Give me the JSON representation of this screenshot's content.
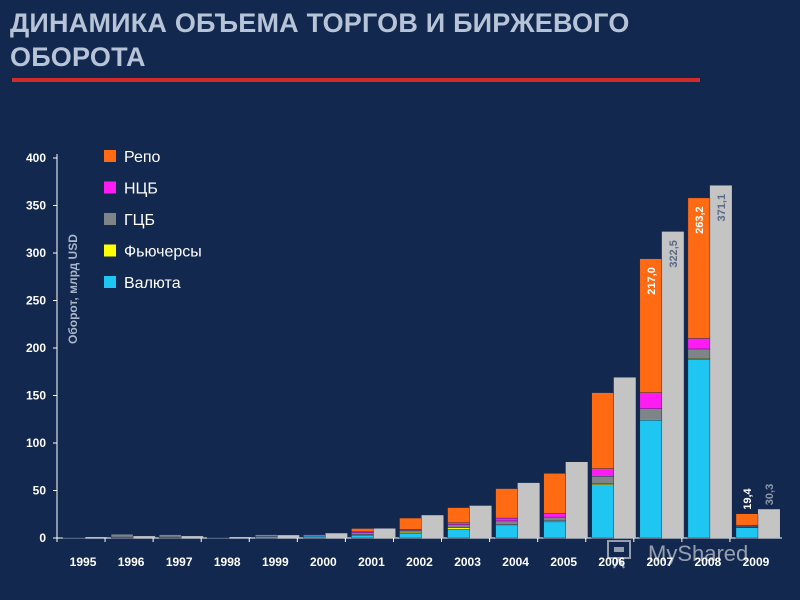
{
  "slide": {
    "title": "ДИНАМИКА ОБЪЕМА ТОРГОВ И БИРЖЕВОГО ОБОРОТА"
  },
  "colors": {
    "background": "#13284f",
    "title_underline": "#d42a2a",
    "repo": "#ff6a13",
    "ncb": "#ff1cf2",
    "gcb": "#7f8488",
    "futures": "#ffff00",
    "currency": "#1fc6f2",
    "turnover": "#c4c4c4"
  },
  "chart_data": {
    "type": "bar",
    "stacked": true,
    "title": "",
    "xlabel": "",
    "ylabel": "Оборот, млрд USD",
    "ylim": [
      0,
      400
    ],
    "yticks": [
      0,
      50,
      100,
      150,
      200,
      250,
      300,
      350,
      400
    ],
    "grid": false,
    "legend_position": "top-left",
    "categories": [
      "1995",
      "1996",
      "1997",
      "1998",
      "1999",
      "2000",
      "2001",
      "2002",
      "2003",
      "2004",
      "2005",
      "2006",
      "2007",
      "2008",
      "2009"
    ],
    "series": [
      {
        "name": "Валюта",
        "color_key": "currency",
        "values": [
          0.5,
          1,
          1,
          0.5,
          1.5,
          2,
          3,
          5,
          9,
          13,
          17,
          56,
          124,
          188,
          11
        ]
      },
      {
        "name": "Фьючерсы",
        "color_key": "futures",
        "values": [
          0,
          0,
          0,
          0,
          0,
          0,
          0.5,
          1,
          2,
          1,
          1,
          1,
          1,
          1,
          0.5
        ]
      },
      {
        "name": "ГЦБ",
        "color_key": "gcb",
        "values": [
          0.5,
          3,
          2.5,
          0.5,
          2,
          1.5,
          2,
          2,
          3,
          4,
          4,
          8,
          11,
          10,
          1
        ]
      },
      {
        "name": "НЦБ",
        "color_key": "ncb",
        "values": [
          0,
          0,
          0,
          0,
          0,
          0.5,
          1,
          1,
          2,
          3,
          4,
          8,
          17,
          11,
          1
        ]
      },
      {
        "name": "Репо",
        "color_key": "repo",
        "values": [
          0,
          0,
          0,
          0,
          0,
          0,
          3.5,
          12,
          16,
          31,
          42,
          80,
          141,
          148,
          12
        ]
      }
    ],
    "turnover_totals": [
      1,
      2,
      2,
      1,
      3,
      5,
      10,
      24,
      34,
      58,
      80,
      169,
      322.5,
      371.1,
      30.3
    ],
    "bar_labels": [
      {
        "year": "2007",
        "stack": "217,0",
        "turnover": "322,5"
      },
      {
        "year": "2008",
        "stack": "263,2",
        "turnover": "371,1"
      },
      {
        "year": "2009",
        "stack": "19,4",
        "turnover": "30,3"
      }
    ],
    "legend": [
      {
        "label": "Репо",
        "color_key": "repo"
      },
      {
        "label": "НЦБ",
        "color_key": "ncb"
      },
      {
        "label": "ГЦБ",
        "color_key": "gcb"
      },
      {
        "label": "Фьючерсы",
        "color_key": "futures"
      },
      {
        "label": "Валюта",
        "color_key": "currency"
      }
    ]
  },
  "watermark": {
    "text": "MyShared"
  }
}
